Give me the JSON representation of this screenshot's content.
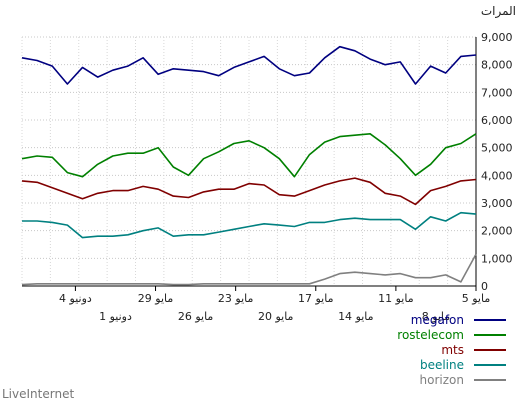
{
  "brand": "LiveInternet",
  "colors": {
    "megafon": "#000080",
    "rostelecom": "#008000",
    "mts": "#800000",
    "beeline": "#008080",
    "horizon": "#808080"
  },
  "chart_data": {
    "type": "line",
    "ylabel": "المرات",
    "ylim": [
      0,
      9000
    ],
    "yticks": [
      "0",
      "1,000",
      "2,000",
      "3,000",
      "4,000",
      "5,000",
      "6,000",
      "7,000",
      "8,000",
      "9,000"
    ],
    "yvals": [
      0,
      1000,
      2000,
      3000,
      4000,
      5000,
      6000,
      7000,
      8000,
      9000
    ],
    "grid": true,
    "legend_position": "bottom-right",
    "x_tick_labels": [
      {
        "label": "5 مايو",
        "index": 34,
        "row": 1
      },
      {
        "label": "8 مايو",
        "index": 31,
        "row": 2
      },
      {
        "label": "11 مايو",
        "index": 28,
        "row": 1
      },
      {
        "label": "14 مايو",
        "index": 25,
        "row": 2
      },
      {
        "label": "17 مايو",
        "index": 22,
        "row": 1
      },
      {
        "label": "20 مايو",
        "index": 19,
        "row": 2
      },
      {
        "label": "23 مايو",
        "index": 16,
        "row": 1
      },
      {
        "label": "26 مايو",
        "index": 13,
        "row": 2
      },
      {
        "label": "29 مايو",
        "index": 10,
        "row": 1
      },
      {
        "label": "1 دونيو",
        "index": 7,
        "row": 2
      },
      {
        "label": "4 دونيو",
        "index": 4,
        "row": 1
      }
    ],
    "series": [
      {
        "name": "megafon",
        "values": [
          8250,
          8150,
          7950,
          7300,
          7900,
          7550,
          7800,
          7950,
          8250,
          7650,
          7850,
          7800,
          7750,
          7600,
          7900,
          8100,
          8300,
          7850,
          7600,
          7700,
          8250,
          8650,
          8500,
          8200,
          8000,
          8100,
          7300,
          7950,
          7700,
          8300,
          8350
        ]
      },
      {
        "name": "rostelecom",
        "values": [
          4600,
          4700,
          4650,
          4100,
          3950,
          4400,
          4700,
          4800,
          4800,
          5000,
          4300,
          4000,
          4600,
          4850,
          5150,
          5250,
          5000,
          4600,
          3950,
          4750,
          5200,
          5400,
          5450,
          5500,
          5100,
          4600,
          4000,
          4400,
          5000,
          5150,
          5500
        ]
      },
      {
        "name": "mts",
        "values": [
          3800,
          3750,
          3550,
          3350,
          3150,
          3350,
          3450,
          3450,
          3600,
          3500,
          3250,
          3200,
          3400,
          3500,
          3500,
          3700,
          3650,
          3300,
          3250,
          3450,
          3650,
          3800,
          3900,
          3750,
          3350,
          3250,
          2950,
          3450,
          3600,
          3800,
          3850
        ]
      },
      {
        "name": "beeline",
        "values": [
          2350,
          2350,
          2300,
          2200,
          1750,
          1800,
          1800,
          1850,
          2000,
          2100,
          1800,
          1850,
          1850,
          1950,
          2050,
          2150,
          2250,
          2200,
          2150,
          2300,
          2300,
          2400,
          2450,
          2400,
          2400,
          2400,
          2050,
          2500,
          2350,
          2650,
          2600
        ]
      },
      {
        "name": "horizon",
        "values": [
          50,
          80,
          80,
          80,
          80,
          80,
          80,
          80,
          80,
          80,
          50,
          50,
          80,
          80,
          80,
          80,
          80,
          80,
          80,
          80,
          250,
          450,
          500,
          450,
          400,
          450,
          300,
          300,
          400,
          150,
          1150
        ]
      }
    ]
  }
}
